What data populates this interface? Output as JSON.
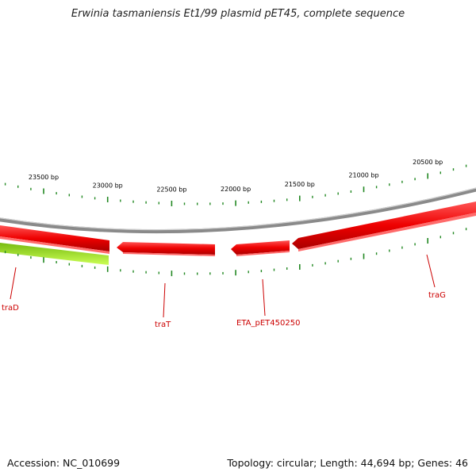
{
  "title": "Erwinia tasmaniensis Et1/99 plasmid pET45, complete sequence",
  "footer": {
    "accession": "Accession: NC_010699",
    "topology": "Topology: circular; Length: 44,694 bp; Genes: 46"
  },
  "map": {
    "tick_labels": [
      {
        "pos": 23500,
        "label": "23500 bp"
      },
      {
        "pos": 23000,
        "label": "23000 bp"
      },
      {
        "pos": 22500,
        "label": "22500 bp"
      },
      {
        "pos": 22000,
        "label": "22000 bp"
      },
      {
        "pos": 21500,
        "label": "21500 bp"
      },
      {
        "pos": 21000,
        "label": "21000 bp"
      },
      {
        "pos": 20500,
        "label": "20500 bp"
      }
    ],
    "genes": [
      {
        "name": "traD",
        "color": "#ee0000"
      },
      {
        "name": "traT",
        "color": "#ee0000"
      },
      {
        "name": "ETA_pET450250",
        "color": "#ee0000"
      },
      {
        "name": "traG",
        "color": "#ee0000"
      }
    ],
    "colors": {
      "backbone": "#8a8a8a",
      "gene_forward": "#ee0000",
      "gene_other": "#99dd22",
      "ticks": "#228822",
      "gene_label": "#cc0000"
    }
  }
}
